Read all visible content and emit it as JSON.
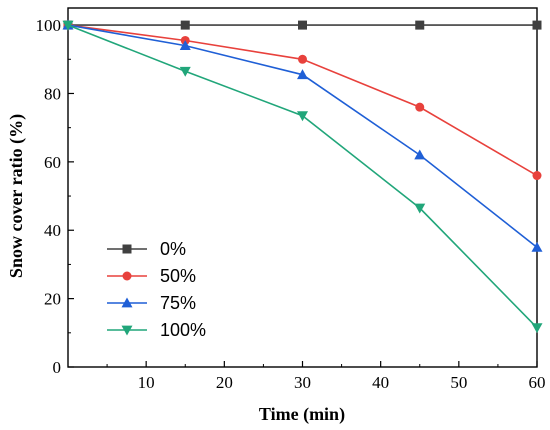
{
  "chart_data": {
    "type": "line",
    "title": "",
    "xlabel": "Time (min)",
    "ylabel": "Snow cover ratio (%)",
    "xlim": [
      0,
      60
    ],
    "ylim": [
      0,
      105
    ],
    "xticks": [
      10,
      20,
      30,
      40,
      50,
      60
    ],
    "yticks": [
      0,
      20,
      40,
      60,
      80,
      100
    ],
    "grid": false,
    "legend_position": "lower-left",
    "x": [
      0,
      15,
      30,
      45,
      60
    ],
    "series": [
      {
        "name": "0%",
        "color": "#404040",
        "marker": "square",
        "values": [
          100,
          100,
          100,
          100,
          100
        ]
      },
      {
        "name": "50%",
        "color": "#e8413c",
        "marker": "circle",
        "values": [
          100,
          95.5,
          90,
          76,
          56
        ]
      },
      {
        "name": "75%",
        "color": "#1f5fd6",
        "marker": "triangle-up",
        "values": [
          100,
          94,
          85.5,
          62,
          35
        ]
      },
      {
        "name": "100%",
        "color": "#21a67a",
        "marker": "triangle-down",
        "values": [
          100,
          86.5,
          73.5,
          46.5,
          11.5
        ]
      }
    ]
  }
}
